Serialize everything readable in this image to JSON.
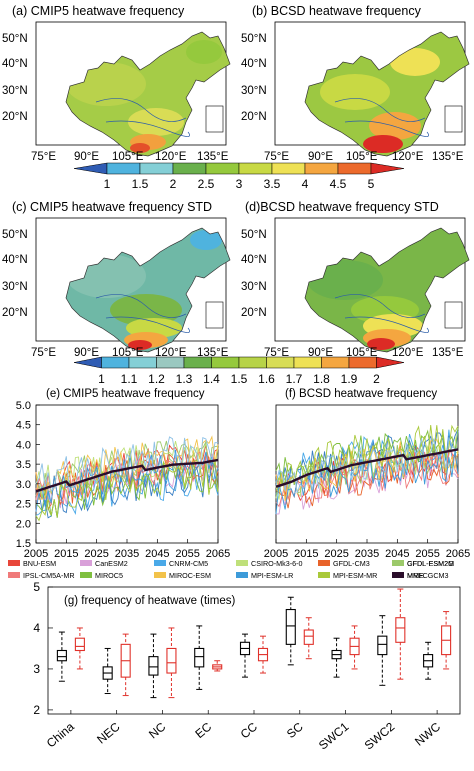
{
  "maps": {
    "titles": {
      "a": "(a) CMIP5 heatwave frequency",
      "b": "(b) BCSD heatwave frequency",
      "c": "(c) CMIP5 heatwave frequency STD",
      "d": "(d)BCSD heatwave frequency STD"
    },
    "lat_labels": [
      "50°N",
      "40°N",
      "30°N",
      "20°N"
    ],
    "lon_labels": [
      "75°E",
      "90°E",
      "105°E",
      "120°E",
      "135°E"
    ],
    "colorbar1": {
      "ticks": [
        "1",
        "1.5",
        "2",
        "2.5",
        "3",
        "3.5",
        "4",
        "4.5",
        "5"
      ],
      "colors": [
        "#2f5cb4",
        "#4fb3de",
        "#84cfd6",
        "#6ab04c",
        "#95c93d",
        "#c8d944",
        "#eee155",
        "#f4a640",
        "#ec6a2c",
        "#dc2b25"
      ]
    },
    "colorbar2": {
      "ticks": [
        "1",
        "1.1",
        "1.2",
        "1.3",
        "1.4",
        "1.5",
        "1.6",
        "1.7",
        "1.8",
        "1.9",
        "2"
      ],
      "colors": [
        "#2f5cb4",
        "#4fb3de",
        "#84cfd6",
        "#9ac8c0",
        "#6ab04c",
        "#95c93d",
        "#b7d348",
        "#d8dd56",
        "#eee155",
        "#f4a640",
        "#ec6a2c",
        "#dc2b25"
      ]
    }
  },
  "series_titles": {
    "e": "(e) CMIP5 heatwave frequency",
    "f": "(f) BCSD heatwave frequency"
  },
  "legend": [
    {
      "name": "BNU-ESM",
      "color": "#e8463a"
    },
    {
      "name": "CanESM2",
      "color": "#d9a0d9"
    },
    {
      "name": "CNRM-CM5",
      "color": "#4aa9e8"
    },
    {
      "name": "CSIRO-Mk3-6-0",
      "color": "#bfe07a"
    },
    {
      "name": "GFDL-CM3",
      "color": "#e8632a"
    },
    {
      "name": "GFDL-ESM2G",
      "color": "#3a7fc4"
    },
    {
      "name": "GFDL-ESM2M",
      "color": "#9cc96a"
    },
    {
      "name": "IPSL-CM5A-MR",
      "color": "#f07a7a"
    },
    {
      "name": "MIROC5",
      "color": "#7fbf3f"
    },
    {
      "name": "MIROC-ESM",
      "color": "#f2c24a"
    },
    {
      "name": "MPI-ESM-LR",
      "color": "#3d9bd9"
    },
    {
      "name": "MPI-ESM-MR",
      "color": "#a9c93a"
    },
    {
      "name": "MRI-CGCM3",
      "color": "#8fc2e6"
    },
    {
      "name": "MME",
      "color": "#2a0d2a"
    }
  ],
  "chart_data": [
    {
      "type": "line",
      "title": "(e) CMIP5 heatwave frequency",
      "x_range": [
        2005,
        2065
      ],
      "xticks": [
        "2005",
        "2015",
        "2025",
        "2035",
        "2045",
        "2055",
        "2065"
      ],
      "ylim": [
        1.5,
        5.0
      ],
      "yticks": [
        "1.5",
        "2.0",
        "2.5",
        "3.0",
        "3.5",
        "4.0",
        "4.5",
        "5.0"
      ],
      "mme": {
        "name": "MME",
        "x": [
          2005,
          2010,
          2015,
          2020,
          2025,
          2030,
          2035,
          2040,
          2045,
          2050,
          2055,
          2060,
          2065
        ],
        "y": [
          2.8,
          2.9,
          3.0,
          3.1,
          3.2,
          3.3,
          3.35,
          3.4,
          3.45,
          3.5,
          3.5,
          3.5,
          3.55
        ]
      },
      "model_spread": {
        "min_start": 1.8,
        "max_end": 4.7
      }
    },
    {
      "type": "line",
      "title": "(f) BCSD heatwave frequency",
      "x_range": [
        2005,
        2065
      ],
      "xticks": [
        "2005",
        "2015",
        "2025",
        "2035",
        "2045",
        "2055",
        "2065"
      ],
      "ylim": [
        1.5,
        5.0
      ],
      "mme": {
        "name": "MME",
        "x": [
          2005,
          2010,
          2015,
          2020,
          2025,
          2030,
          2035,
          2040,
          2045,
          2050,
          2055,
          2060,
          2065
        ],
        "y": [
          2.95,
          3.05,
          3.2,
          3.3,
          3.4,
          3.5,
          3.55,
          3.6,
          3.65,
          3.7,
          3.75,
          3.8,
          3.85
        ]
      },
      "model_spread": {
        "min_start": 2.2,
        "max_end": 5.0
      }
    },
    {
      "type": "box",
      "title": "(g) frequency of heatwave (times)",
      "ylim": [
        1.9,
        5.0
      ],
      "yticks": [
        "2",
        "3",
        "4",
        "5"
      ],
      "categories": [
        "China",
        "NEC",
        "NC",
        "EC",
        "CC",
        "SC",
        "SWC1",
        "SWC2",
        "NWC"
      ],
      "series": [
        {
          "name": "CMIP5",
          "color": "#000000",
          "boxes": [
            {
              "min": 2.7,
              "q1": 3.2,
              "median": 3.3,
              "q3": 3.45,
              "max": 3.9
            },
            {
              "min": 2.4,
              "q1": 2.75,
              "median": 2.9,
              "q3": 3.05,
              "max": 3.5
            },
            {
              "min": 2.3,
              "q1": 2.85,
              "median": 3.05,
              "q3": 3.3,
              "max": 3.85
            },
            {
              "min": 2.5,
              "q1": 3.05,
              "median": 3.3,
              "q3": 3.5,
              "max": 4.05
            },
            {
              "min": 2.8,
              "q1": 3.35,
              "median": 3.5,
              "q3": 3.65,
              "max": 3.85
            },
            {
              "min": 3.1,
              "q1": 3.6,
              "median": 4.05,
              "q3": 4.45,
              "max": 4.75
            },
            {
              "min": 2.8,
              "q1": 3.25,
              "median": 3.35,
              "q3": 3.45,
              "max": 3.75
            },
            {
              "min": 2.6,
              "q1": 3.35,
              "median": 3.6,
              "q3": 3.8,
              "max": 4.3
            },
            {
              "min": 2.75,
              "q1": 3.05,
              "median": 3.2,
              "q3": 3.35,
              "max": 3.65
            }
          ]
        },
        {
          "name": "BCSD",
          "color": "#e0312a",
          "boxes": [
            {
              "min": 3.0,
              "q1": 3.45,
              "median": 3.55,
              "q3": 3.75,
              "max": 4.0
            },
            {
              "min": 2.35,
              "q1": 2.8,
              "median": 3.2,
              "q3": 3.6,
              "max": 3.85
            },
            {
              "min": 2.3,
              "q1": 2.9,
              "median": 3.15,
              "q3": 3.5,
              "max": 4.0
            },
            {
              "min": 2.95,
              "q1": 3.0,
              "median": 3.05,
              "q3": 3.1,
              "max": 3.2
            },
            {
              "min": 2.9,
              "q1": 3.2,
              "median": 3.35,
              "q3": 3.5,
              "max": 3.8
            },
            {
              "min": 3.25,
              "q1": 3.6,
              "median": 3.8,
              "q3": 3.95,
              "max": 4.25
            },
            {
              "min": 3.0,
              "q1": 3.35,
              "median": 3.55,
              "q3": 3.75,
              "max": 4.05
            },
            {
              "min": 2.75,
              "q1": 3.65,
              "median": 4.0,
              "q3": 4.25,
              "max": 4.95
            },
            {
              "min": 3.0,
              "q1": 3.35,
              "median": 3.7,
              "q3": 4.05,
              "max": 4.4
            }
          ]
        }
      ]
    }
  ]
}
